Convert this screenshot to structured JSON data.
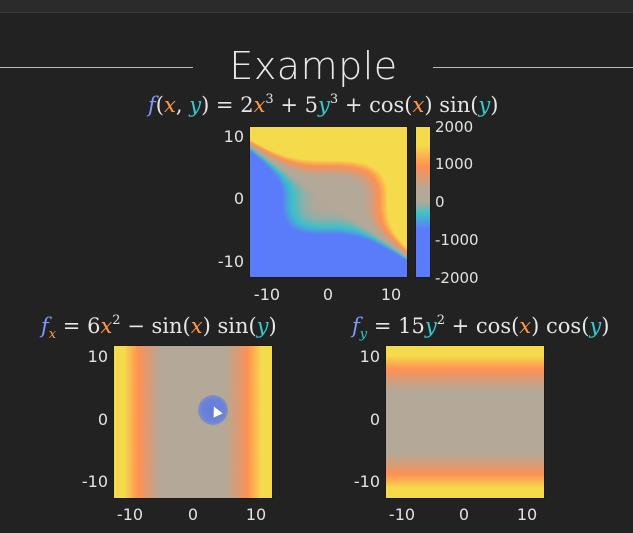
{
  "slide": {
    "title": "Example"
  },
  "main_equation": {
    "parts": [
      "f",
      "(",
      "x",
      ", ",
      "y",
      ") = 2",
      "x",
      "3",
      " + 5",
      "y",
      "3",
      " + cos(",
      "x",
      ") sin(",
      "y",
      ")"
    ]
  },
  "fx_equation": {
    "parts": [
      "f",
      "x",
      " = 6",
      "x",
      "2",
      " − sin(",
      "x",
      ") sin(",
      "y",
      ")"
    ]
  },
  "fy_equation": {
    "parts": [
      "f",
      "y",
      " = 15",
      "y",
      "2",
      " + cos(",
      "x",
      ") cos(",
      "y",
      ")"
    ]
  },
  "colors": {
    "low": "#5b7cfa",
    "mid_teal": "#3ec1c9",
    "mid": "#b4a898",
    "high_orange": "#ff9153",
    "top": "#f5db4c",
    "background": "#222222"
  },
  "chart_data": [
    {
      "type": "heatmap",
      "function": "2x^3 + 5y^3 + cos(x) sin(y)",
      "x_ticks": [
        "-10",
        "0",
        "10"
      ],
      "y_ticks": [
        "10",
        "0",
        "-10"
      ],
      "xlim": [
        -12,
        12
      ],
      "ylim": [
        -12,
        12
      ],
      "color_range": [
        -2000,
        2000
      ],
      "colorbar_ticks": [
        "2000",
        "1000",
        "0",
        "-1000",
        "-2000"
      ]
    },
    {
      "type": "heatmap",
      "function": "6x^2 - sin(x) sin(y)",
      "x_ticks": [
        "-10",
        "0",
        "10"
      ],
      "y_ticks": [
        "10",
        "0",
        "-10"
      ],
      "xlim": [
        -12,
        12
      ],
      "ylim": [
        -12,
        12
      ],
      "color_range": [
        -864,
        864
      ]
    },
    {
      "type": "heatmap",
      "function": "15y^2 + cos(x) cos(y)",
      "x_ticks": [
        "-10",
        "0",
        "10"
      ],
      "y_ticks": [
        "10",
        "0",
        "-10"
      ],
      "xlim": [
        -12,
        12
      ],
      "ylim": [
        -12,
        12
      ],
      "color_range": [
        -2160,
        2160
      ]
    }
  ]
}
